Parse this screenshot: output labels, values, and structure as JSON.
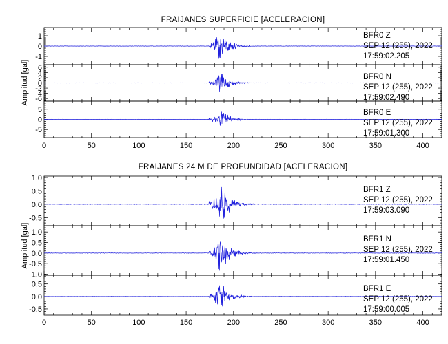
{
  "chart_data": [
    {
      "type": "line",
      "title": "FRAIJANES SUPERFICIE [ACELERACION]",
      "ylabel": "Amplitud [gal]",
      "x_ticks": [
        "0",
        "50",
        "100",
        "150",
        "200",
        "250",
        "300",
        "350",
        "400"
      ],
      "xlim": [
        0,
        420
      ],
      "onset_s": 174,
      "peak_s": 186,
      "traces": [
        {
          "station": "BFR0",
          "component": "Z",
          "date": "SEP 12 (255), 2022",
          "time": "17:59:02.205",
          "ylim": [
            -1.8,
            1.8
          ],
          "y_ticks": [
            "1",
            "0",
            "-1"
          ],
          "peak_amp": 1.6
        },
        {
          "station": "BFR0",
          "component": "N",
          "date": "SEP 12 (255), 2022",
          "time": "17:59:02.490",
          "ylim": [
            -7,
            7
          ],
          "y_ticks": [
            "6",
            "4",
            "2",
            "0",
            "-2",
            "-4",
            "-6"
          ],
          "peak_amp": 4.5
        },
        {
          "station": "BFR0",
          "component": "E",
          "date": "SEP 12 (255), 2022",
          "time": "17:59:01.300",
          "ylim": [
            -9,
            9
          ],
          "y_ticks": [
            "5",
            "0",
            "-5"
          ],
          "peak_amp": 5.5
        }
      ]
    },
    {
      "type": "line",
      "title": "FRAIJANES 24 M DE PROFUNDIDAD [ACELERACION]",
      "ylabel": "Amplitud [gal]",
      "x_ticks": [
        "0",
        "50",
        "100",
        "150",
        "200",
        "250",
        "300",
        "350",
        "400"
      ],
      "xlim": [
        0,
        420
      ],
      "onset_s": 174,
      "peak_s": 186,
      "traces": [
        {
          "station": "BFR1",
          "component": "Z",
          "date": "SEP 12 (255), 2022",
          "time": "17:59:03.090",
          "ylim": [
            -0.8,
            1.05
          ],
          "y_ticks": [
            "1.0",
            "0.5",
            "0.0",
            "-0.5"
          ],
          "peak_amp": 0.95
        },
        {
          "station": "BFR1",
          "component": "N",
          "date": "SEP 12 (255), 2022",
          "time": "17:59:01.450",
          "ylim": [
            -1.05,
            1.3
          ],
          "y_ticks": [
            "1.0",
            "0.5",
            "0.0",
            "-0.5",
            "-1.0"
          ],
          "peak_amp": 1.0
        },
        {
          "station": "BFR1",
          "component": "E",
          "date": "SEP 12 (255), 2022",
          "time": "17:59:00.005",
          "ylim": [
            -0.75,
            0.85
          ],
          "y_ticks": [
            "0.5",
            "0.0",
            "-0.5"
          ],
          "peak_amp": 0.65
        }
      ]
    }
  ]
}
